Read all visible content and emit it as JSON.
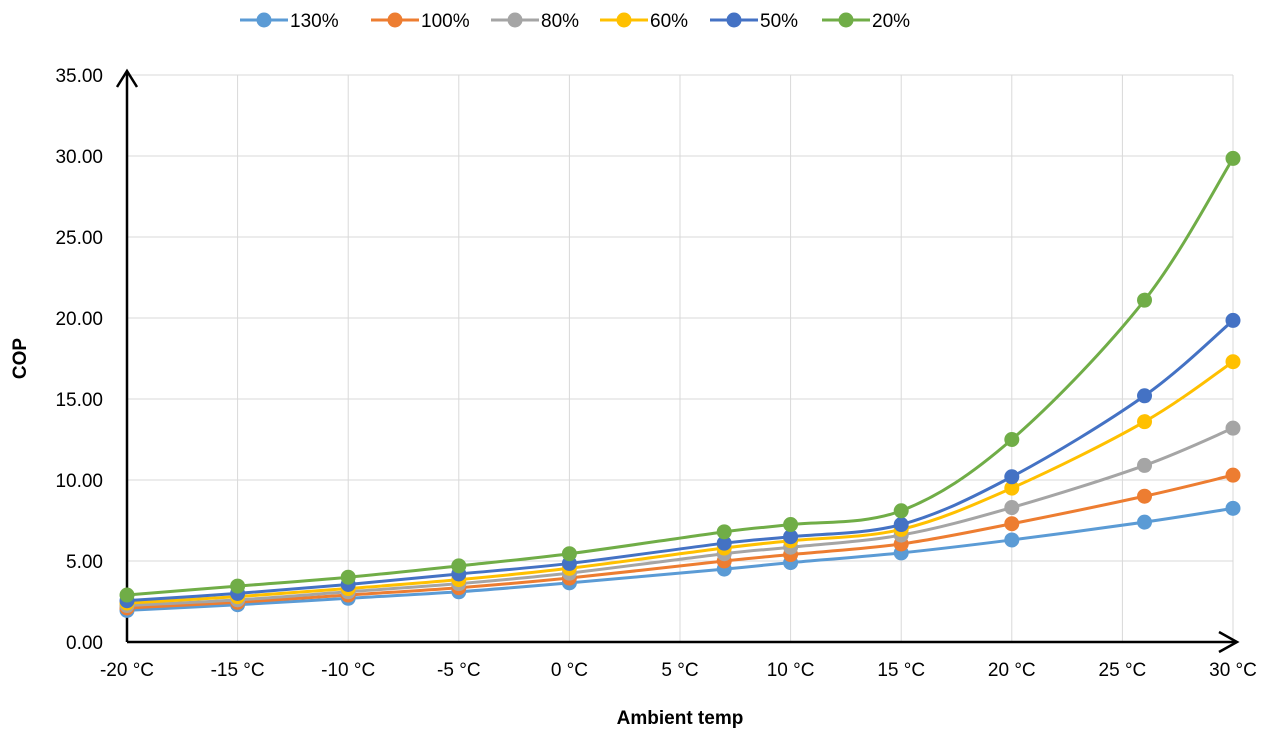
{
  "chart_data": {
    "type": "line",
    "title": "",
    "xlabel": "Ambient temp",
    "ylabel": "COP",
    "x_tick_labels": [
      "-20 °C",
      "-15 °C",
      "-10 °C",
      "-5 °C",
      "0 °C",
      "5 °C",
      "10 °C",
      "15 °C",
      "20 °C",
      "25 °C",
      "30 °C"
    ],
    "x_ticks": [
      -20,
      -15,
      -10,
      -5,
      0,
      5,
      10,
      15,
      20,
      25,
      30
    ],
    "y_tick_labels": [
      "0.00",
      "5.00",
      "10.00",
      "15.00",
      "20.00",
      "25.00",
      "30.00",
      "35.00"
    ],
    "y_ticks": [
      0,
      5,
      10,
      15,
      20,
      25,
      30,
      35
    ],
    "xlim": [
      -20,
      30
    ],
    "ylim": [
      0,
      35
    ],
    "grid": true,
    "legend_position": "top",
    "smooth": true,
    "x": [
      -20,
      -15,
      -10,
      -5,
      0,
      7,
      10,
      15,
      20,
      26,
      30
    ],
    "series": [
      {
        "name": "130%",
        "color": "#5B9BD5",
        "values": [
          1.95,
          2.3,
          2.7,
          3.1,
          3.65,
          4.5,
          4.9,
          5.5,
          6.3,
          7.4,
          8.25
        ]
      },
      {
        "name": "100%",
        "color": "#ED7D31",
        "values": [
          2.1,
          2.45,
          2.9,
          3.35,
          3.95,
          5.0,
          5.4,
          6.05,
          7.3,
          9.0,
          10.3
        ]
      },
      {
        "name": "80%",
        "color": "#A5A5A5",
        "values": [
          2.25,
          2.6,
          3.1,
          3.6,
          4.25,
          5.45,
          5.85,
          6.6,
          8.3,
          10.9,
          13.2
        ]
      },
      {
        "name": "60%",
        "color": "#FFC000",
        "values": [
          2.4,
          2.8,
          3.3,
          3.85,
          4.55,
          5.8,
          6.25,
          6.95,
          9.5,
          13.6,
          17.3
        ]
      },
      {
        "name": "50%",
        "color": "#4472C4",
        "values": [
          2.55,
          3.0,
          3.55,
          4.2,
          4.85,
          6.1,
          6.5,
          7.25,
          10.2,
          15.2,
          19.85
        ]
      },
      {
        "name": "20%",
        "color": "#70AD47",
        "values": [
          2.9,
          3.45,
          4.0,
          4.7,
          5.45,
          6.8,
          7.25,
          8.1,
          12.5,
          21.1,
          29.85
        ]
      }
    ]
  }
}
